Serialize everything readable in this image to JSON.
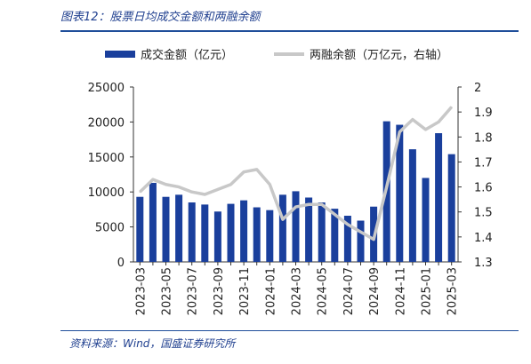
{
  "figure": {
    "title": "图表12：股票日均成交金额和两融余额",
    "source": "资料来源：Wind，国盛证券研究所"
  },
  "colors": {
    "bar": "#1a3f9c",
    "line": "#c8c8c8",
    "rule": "#1f4e9a",
    "text": "#1f3f8f"
  },
  "chart_data": {
    "type": "bar",
    "categories": [
      "2023-03",
      "2023-04",
      "2023-05",
      "2023-06",
      "2023-07",
      "2023-08",
      "2023-09",
      "2023-10",
      "2023-11",
      "2023-12",
      "2024-01",
      "2024-02",
      "2024-03",
      "2024-04",
      "2024-05",
      "2024-06",
      "2024-07",
      "2024-08",
      "2024-09",
      "2024-10",
      "2024-11",
      "2024-12",
      "2025-01",
      "2025-02",
      "2025-03"
    ],
    "x_tick_labels": [
      "2023-03",
      "2023-05",
      "2023-07",
      "2023-09",
      "2023-11",
      "2024-01",
      "2024-03",
      "2024-05",
      "2024-07",
      "2024-09",
      "2024-11",
      "2025-01",
      "2025-03"
    ],
    "series": [
      {
        "name": "成交金额（亿元）",
        "type": "bar",
        "axis": "left",
        "values": [
          9300,
          11300,
          9300,
          9600,
          8500,
          8200,
          7200,
          8300,
          8800,
          7800,
          7400,
          9600,
          10100,
          9200,
          8500,
          7600,
          6600,
          5900,
          7900,
          20100,
          19600,
          16100,
          12000,
          18400,
          15400
        ]
      },
      {
        "name": "两融余额（万亿元，右轴）",
        "type": "line",
        "axis": "right",
        "values": [
          1.58,
          1.63,
          1.61,
          1.6,
          1.58,
          1.57,
          1.59,
          1.61,
          1.66,
          1.67,
          1.61,
          1.47,
          1.52,
          1.53,
          1.53,
          1.49,
          1.45,
          1.42,
          1.39,
          1.6,
          1.82,
          1.87,
          1.83,
          1.86,
          1.92
        ]
      }
    ],
    "y_left": {
      "min": 0,
      "max": 25000,
      "ticks": [
        0,
        5000,
        10000,
        15000,
        20000,
        25000
      ]
    },
    "y_right": {
      "min": 1.3,
      "max": 2.0,
      "ticks": [
        "1.3",
        "1.4",
        "1.5",
        "1.6",
        "1.7",
        "1.8",
        "1.9",
        "2"
      ]
    },
    "legend": {
      "position": "top"
    }
  }
}
